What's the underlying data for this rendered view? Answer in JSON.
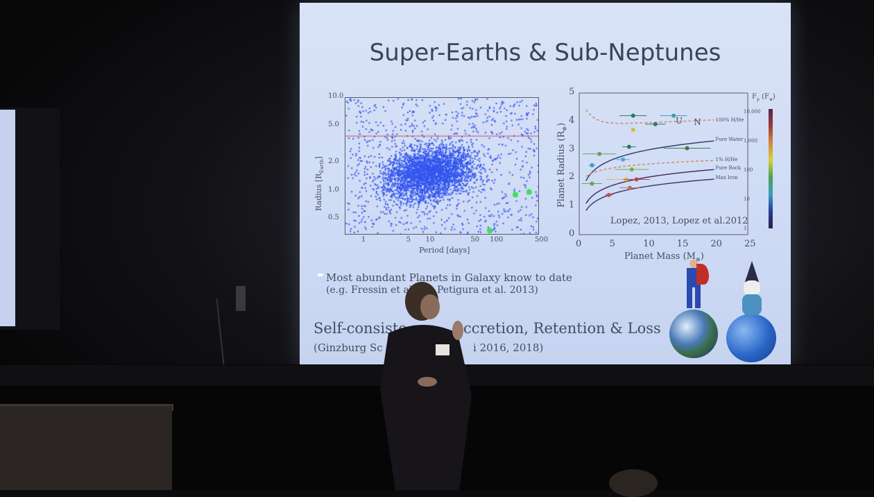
{
  "slide": {
    "title": "Super-Earths & Sub-Neptunes",
    "bullet1": "Most abundant Planets in Galaxy know to date",
    "ref1_a": "(e.g. Fressin et al.",
    "ref1_b": "Petigura et al. 2013)",
    "line2_a": "Self-consiste",
    "line2_b": "ccretion, Retention & Loss",
    "ref2_a": "(Ginzburg Sc",
    "ref2_b": "i 2016, 2018)"
  },
  "left_plot": {
    "ylabel": "Radius [R",
    "ylabel_sub": "Earth",
    "xlabel": "Period [days]",
    "yticks": [
      "10.0",
      "5.0",
      "2.0",
      "1.0",
      "0.5"
    ],
    "xticks": [
      "1",
      "5",
      "10",
      "50",
      "100",
      "500"
    ],
    "highlight_color": "#44dd55",
    "point_color": "#3355ee",
    "line_color": "#c0505a"
  },
  "right_plot": {
    "ylabel": "Planet Radius (R",
    "xlabel": "Planet Mass (M",
    "yticks": [
      "0",
      "1",
      "2",
      "3",
      "4",
      "5"
    ],
    "xticks": [
      "0",
      "5",
      "10",
      "15",
      "20",
      "25"
    ],
    "curve_labels": [
      "100% H/He",
      "Pure Water",
      "1% H/He",
      "Pure Rock",
      "Max Iron"
    ],
    "planet_labels": [
      "U",
      "N"
    ],
    "credit": "Lopez, 2013, Lopez et al.2012",
    "colorbar_title": "F",
    "colorbar_ticks": [
      "10,000",
      "1,000",
      "100",
      "10",
      "1"
    ]
  }
}
